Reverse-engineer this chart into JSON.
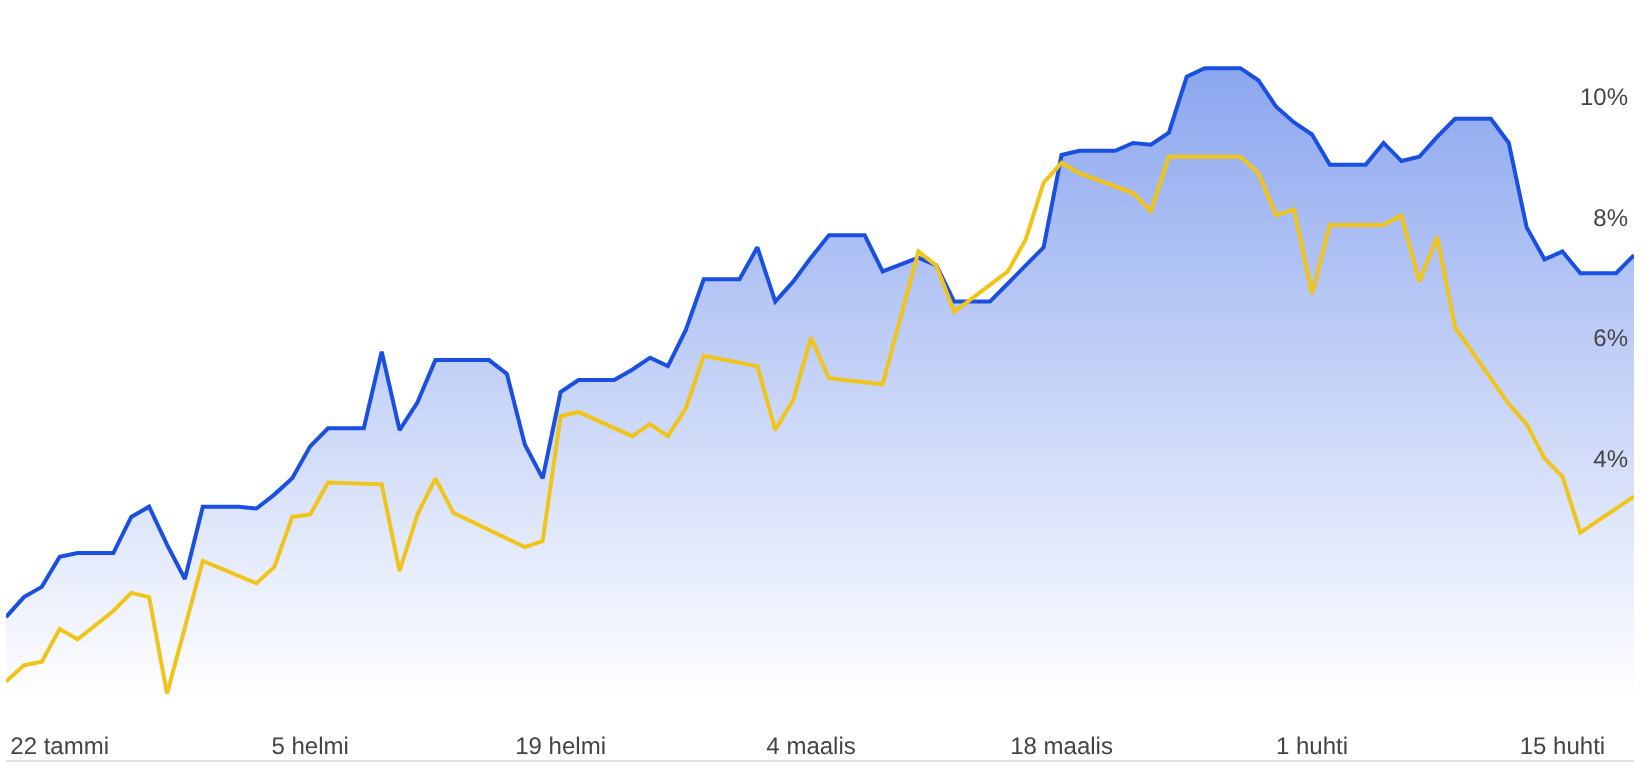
{
  "chart_data": {
    "type": "line",
    "xlim": [
      "--01-19",
      "--04-19"
    ],
    "ylim": [
      -1,
      11.6
    ],
    "xticks": [
      {
        "value": "--01-22",
        "label": "22 tammi"
      },
      {
        "value": "--02-05",
        "label": "5 helmi"
      },
      {
        "value": "--02-19",
        "label": "19 helmi"
      },
      {
        "value": "--03-04",
        "label": "4 maalis"
      },
      {
        "value": "--03-18",
        "label": "18 maalis"
      },
      {
        "value": "--04-01",
        "label": "1 huhti"
      },
      {
        "value": "--04-15",
        "label": "15 huhti"
      }
    ],
    "yticks": [
      {
        "value": 4,
        "label": "4%"
      },
      {
        "value": 6,
        "label": "6%"
      },
      {
        "value": 8,
        "label": "8%"
      },
      {
        "value": 10,
        "label": "10%"
      }
    ],
    "marker": "none",
    "line_style": "solid",
    "series": [
      {
        "color": "#f0c419",
        "x": [
          "--01-19",
          "--01-20",
          "--01-21",
          "--01-22",
          "--01-23",
          "--01-25",
          "--01-26",
          "--01-27",
          "--01-28",
          "--01-30",
          "--02-02",
          "--02-03",
          "--02-04",
          "--02-05",
          "--02-06",
          "--02-09",
          "--02-10",
          "--02-11",
          "--02-12",
          "--02-13",
          "--02-17",
          "--02-18",
          "--02-19",
          "--02-20",
          "--02-23",
          "--02-24",
          "--02-25",
          "--02-26",
          "--02-27",
          "--03-01",
          "--03-02",
          "--03-03",
          "--03-04",
          "--03-05",
          "--03-08",
          "--03-10",
          "--03-11",
          "--03-12",
          "--03-15",
          "--03-16",
          "--03-17",
          "--03-18",
          "--03-19",
          "--03-22",
          "--03-23",
          "--03-24",
          "--03-28",
          "--03-29",
          "--03-30",
          "--03-31",
          "--04-01",
          "--04-02",
          "--04-05",
          "--04-06",
          "--04-07",
          "--04-08",
          "--04-09",
          "--04-12",
          "--04-13",
          "--04-14",
          "--04-15",
          "--04-16",
          "--04-19"
        ],
        "values": [
          0.3,
          0.57,
          0.63,
          1.17,
          1.0,
          1.47,
          1.77,
          1.7,
          0.1,
          2.3,
          1.93,
          2.2,
          3.03,
          3.07,
          3.6,
          3.57,
          2.13,
          3.07,
          3.67,
          3.1,
          2.53,
          2.63,
          4.7,
          4.77,
          4.37,
          4.57,
          4.37,
          4.83,
          5.7,
          5.53,
          4.47,
          4.97,
          6.0,
          5.33,
          5.23,
          7.43,
          7.2,
          6.43,
          7.1,
          7.63,
          8.57,
          8.9,
          8.73,
          8.4,
          8.1,
          9.0,
          9.0,
          8.73,
          8.03,
          8.13,
          6.73,
          7.87,
          7.87,
          8.03,
          6.93,
          7.67,
          6.17,
          4.9,
          4.57,
          4.0,
          3.7,
          2.77,
          3.37
        ]
      },
      {
        "type": "area",
        "color": "#1a4fe0",
        "x": [
          "--01-19",
          "--01-20",
          "--01-21",
          "--01-22",
          "--01-23",
          "--01-25",
          "--01-26",
          "--01-27",
          "--01-28",
          "--01-29",
          "--01-30",
          "--02-01",
          "--02-02",
          "--02-03",
          "--02-04",
          "--02-05",
          "--02-06",
          "--02-08",
          "--02-09",
          "--02-10",
          "--02-11",
          "--02-12",
          "--02-15",
          "--02-16",
          "--02-17",
          "--02-18",
          "--02-19",
          "--02-20",
          "--02-22",
          "--02-23",
          "--02-24",
          "--02-25",
          "--02-26",
          "--02-27",
          "--02-29",
          "--03-01",
          "--03-02",
          "--03-03",
          "--03-04",
          "--03-05",
          "--03-07",
          "--03-08",
          "--03-10",
          "--03-11",
          "--03-12",
          "--03-14",
          "--03-15",
          "--03-16",
          "--03-17",
          "--03-18",
          "--03-19",
          "--03-21",
          "--03-22",
          "--03-23",
          "--03-24",
          "--03-25",
          "--03-26",
          "--03-28",
          "--03-29",
          "--03-30",
          "--03-31",
          "--04-01",
          "--04-02",
          "--04-04",
          "--04-05",
          "--04-06",
          "--04-07",
          "--04-08",
          "--04-09",
          "--04-11",
          "--04-12",
          "--04-13",
          "--04-14",
          "--04-15",
          "--04-16",
          "--04-18",
          "--04-19"
        ],
        "values": [
          1.37,
          1.7,
          1.87,
          2.37,
          2.43,
          2.43,
          3.03,
          3.2,
          2.57,
          2.0,
          3.2,
          3.2,
          3.17,
          3.4,
          3.67,
          4.2,
          4.5,
          4.5,
          5.77,
          4.47,
          4.93,
          5.63,
          5.63,
          5.4,
          4.23,
          3.67,
          5.1,
          5.3,
          5.3,
          5.47,
          5.67,
          5.53,
          6.13,
          6.97,
          6.97,
          7.5,
          6.6,
          6.93,
          7.33,
          7.7,
          7.7,
          7.1,
          7.33,
          7.2,
          6.6,
          6.6,
          6.9,
          7.2,
          7.5,
          9.03,
          9.1,
          9.1,
          9.23,
          9.2,
          9.4,
          10.33,
          10.47,
          10.47,
          10.27,
          9.83,
          9.57,
          9.37,
          8.87,
          8.87,
          9.23,
          8.93,
          9.0,
          9.33,
          9.63,
          9.63,
          9.23,
          7.83,
          7.3,
          7.43,
          7.07,
          7.07,
          7.37
        ]
      }
    ]
  }
}
